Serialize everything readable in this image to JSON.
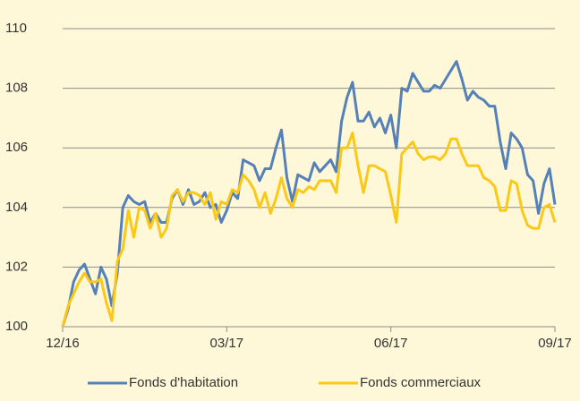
{
  "chart_data": {
    "type": "line",
    "x": [
      0,
      0.1,
      0.2,
      0.3,
      0.4,
      0.5,
      0.6,
      0.7,
      0.8,
      0.9,
      1,
      1.1,
      1.2,
      1.3,
      1.4,
      1.5,
      1.6,
      1.7,
      1.8,
      1.9,
      2,
      2.1,
      2.2,
      2.3,
      2.4,
      2.5,
      2.6,
      2.7,
      2.8,
      2.9,
      3,
      3.1,
      3.2,
      3.3,
      3.4,
      3.5,
      3.6,
      3.7,
      3.8,
      3.9,
      4,
      4.1,
      4.2,
      4.3,
      4.4,
      4.5,
      4.6,
      4.7,
      4.8,
      4.9,
      5,
      5.1,
      5.2,
      5.3,
      5.4,
      5.5,
      5.6,
      5.7,
      5.8,
      5.9,
      6,
      6.1,
      6.2,
      6.3,
      6.4,
      6.5,
      6.6,
      6.7,
      6.8,
      6.9,
      7,
      7.1,
      7.2,
      7.3,
      7.4,
      7.5,
      7.6,
      7.7,
      7.8,
      7.9,
      8,
      8.1,
      8.2,
      8.3,
      8.4,
      8.5,
      8.6,
      8.7,
      8.8,
      8.9,
      9
    ],
    "series": [
      {
        "name": "Fonds d'habitation",
        "color": "#5580b8",
        "values": [
          100,
          100.6,
          101.5,
          101.9,
          102.1,
          101.6,
          101.1,
          102.0,
          101.6,
          100.7,
          101.8,
          104.0,
          104.4,
          104.2,
          104.1,
          104.2,
          103.5,
          103.8,
          103.5,
          103.5,
          104.3,
          104.6,
          104.1,
          104.6,
          104.1,
          104.2,
          104.5,
          104.0,
          104.1,
          103.5,
          103.9,
          104.5,
          104.3,
          105.6,
          105.5,
          105.4,
          104.9,
          105.3,
          105.3,
          106.0,
          106.6,
          105.0,
          104.2,
          105.1,
          105.0,
          104.9,
          105.5,
          105.2,
          105.4,
          105.6,
          105.2,
          106.9,
          107.7,
          108.2,
          106.9,
          106.9,
          107.2,
          106.7,
          107.0,
          106.5,
          107.1,
          106.0,
          108.0,
          107.9,
          108.5,
          108.2,
          107.9,
          107.9,
          108.1,
          108.0,
          108.3,
          108.6,
          108.9,
          108.3,
          107.6,
          107.9,
          107.7,
          107.6,
          107.4,
          107.4,
          106.2,
          105.3,
          106.5,
          106.3,
          106.0,
          105.1,
          104.9,
          103.8,
          104.8,
          105.3,
          104.1
        ]
      },
      {
        "name": "Fonds commerciaux",
        "color": "#fcc817",
        "values": [
          100,
          100.7,
          101.1,
          101.5,
          101.8,
          101.5,
          101.5,
          101.6,
          100.8,
          100.2,
          102.2,
          102.6,
          103.9,
          103.0,
          104.0,
          103.9,
          103.3,
          103.8,
          103.0,
          103.3,
          104.4,
          104.6,
          104.2,
          104.5,
          104.5,
          104.4,
          104.1,
          104.5,
          103.6,
          104.2,
          104.1,
          104.6,
          104.5,
          105.1,
          104.9,
          104.6,
          104.0,
          104.5,
          103.8,
          104.3,
          105.0,
          104.3,
          104.0,
          104.6,
          104.5,
          104.7,
          104.6,
          104.9,
          104.9,
          104.9,
          104.5,
          106.0,
          106.0,
          106.5,
          105.4,
          104.5,
          105.4,
          105.4,
          105.3,
          105.2,
          104.4,
          103.5,
          105.8,
          106.0,
          106.2,
          105.8,
          105.6,
          105.7,
          105.7,
          105.6,
          105.8,
          106.3,
          106.3,
          105.8,
          105.4,
          105.4,
          105.4,
          105.0,
          104.9,
          104.7,
          103.9,
          103.9,
          104.9,
          104.8,
          103.9,
          103.4,
          103.3,
          103.3,
          104.0,
          104.1,
          103.5
        ]
      }
    ],
    "xlim": [
      0,
      9
    ],
    "xticks": [
      {
        "value": 0,
        "label": "12/16"
      },
      {
        "value": 3,
        "label": "03/17"
      },
      {
        "value": 6,
        "label": "06/17"
      },
      {
        "value": 9,
        "label": "09/17"
      }
    ],
    "ylim": [
      100,
      110
    ],
    "yticks": [
      100,
      102,
      104,
      106,
      108,
      110
    ],
    "grid": true,
    "legend": "bottom"
  }
}
